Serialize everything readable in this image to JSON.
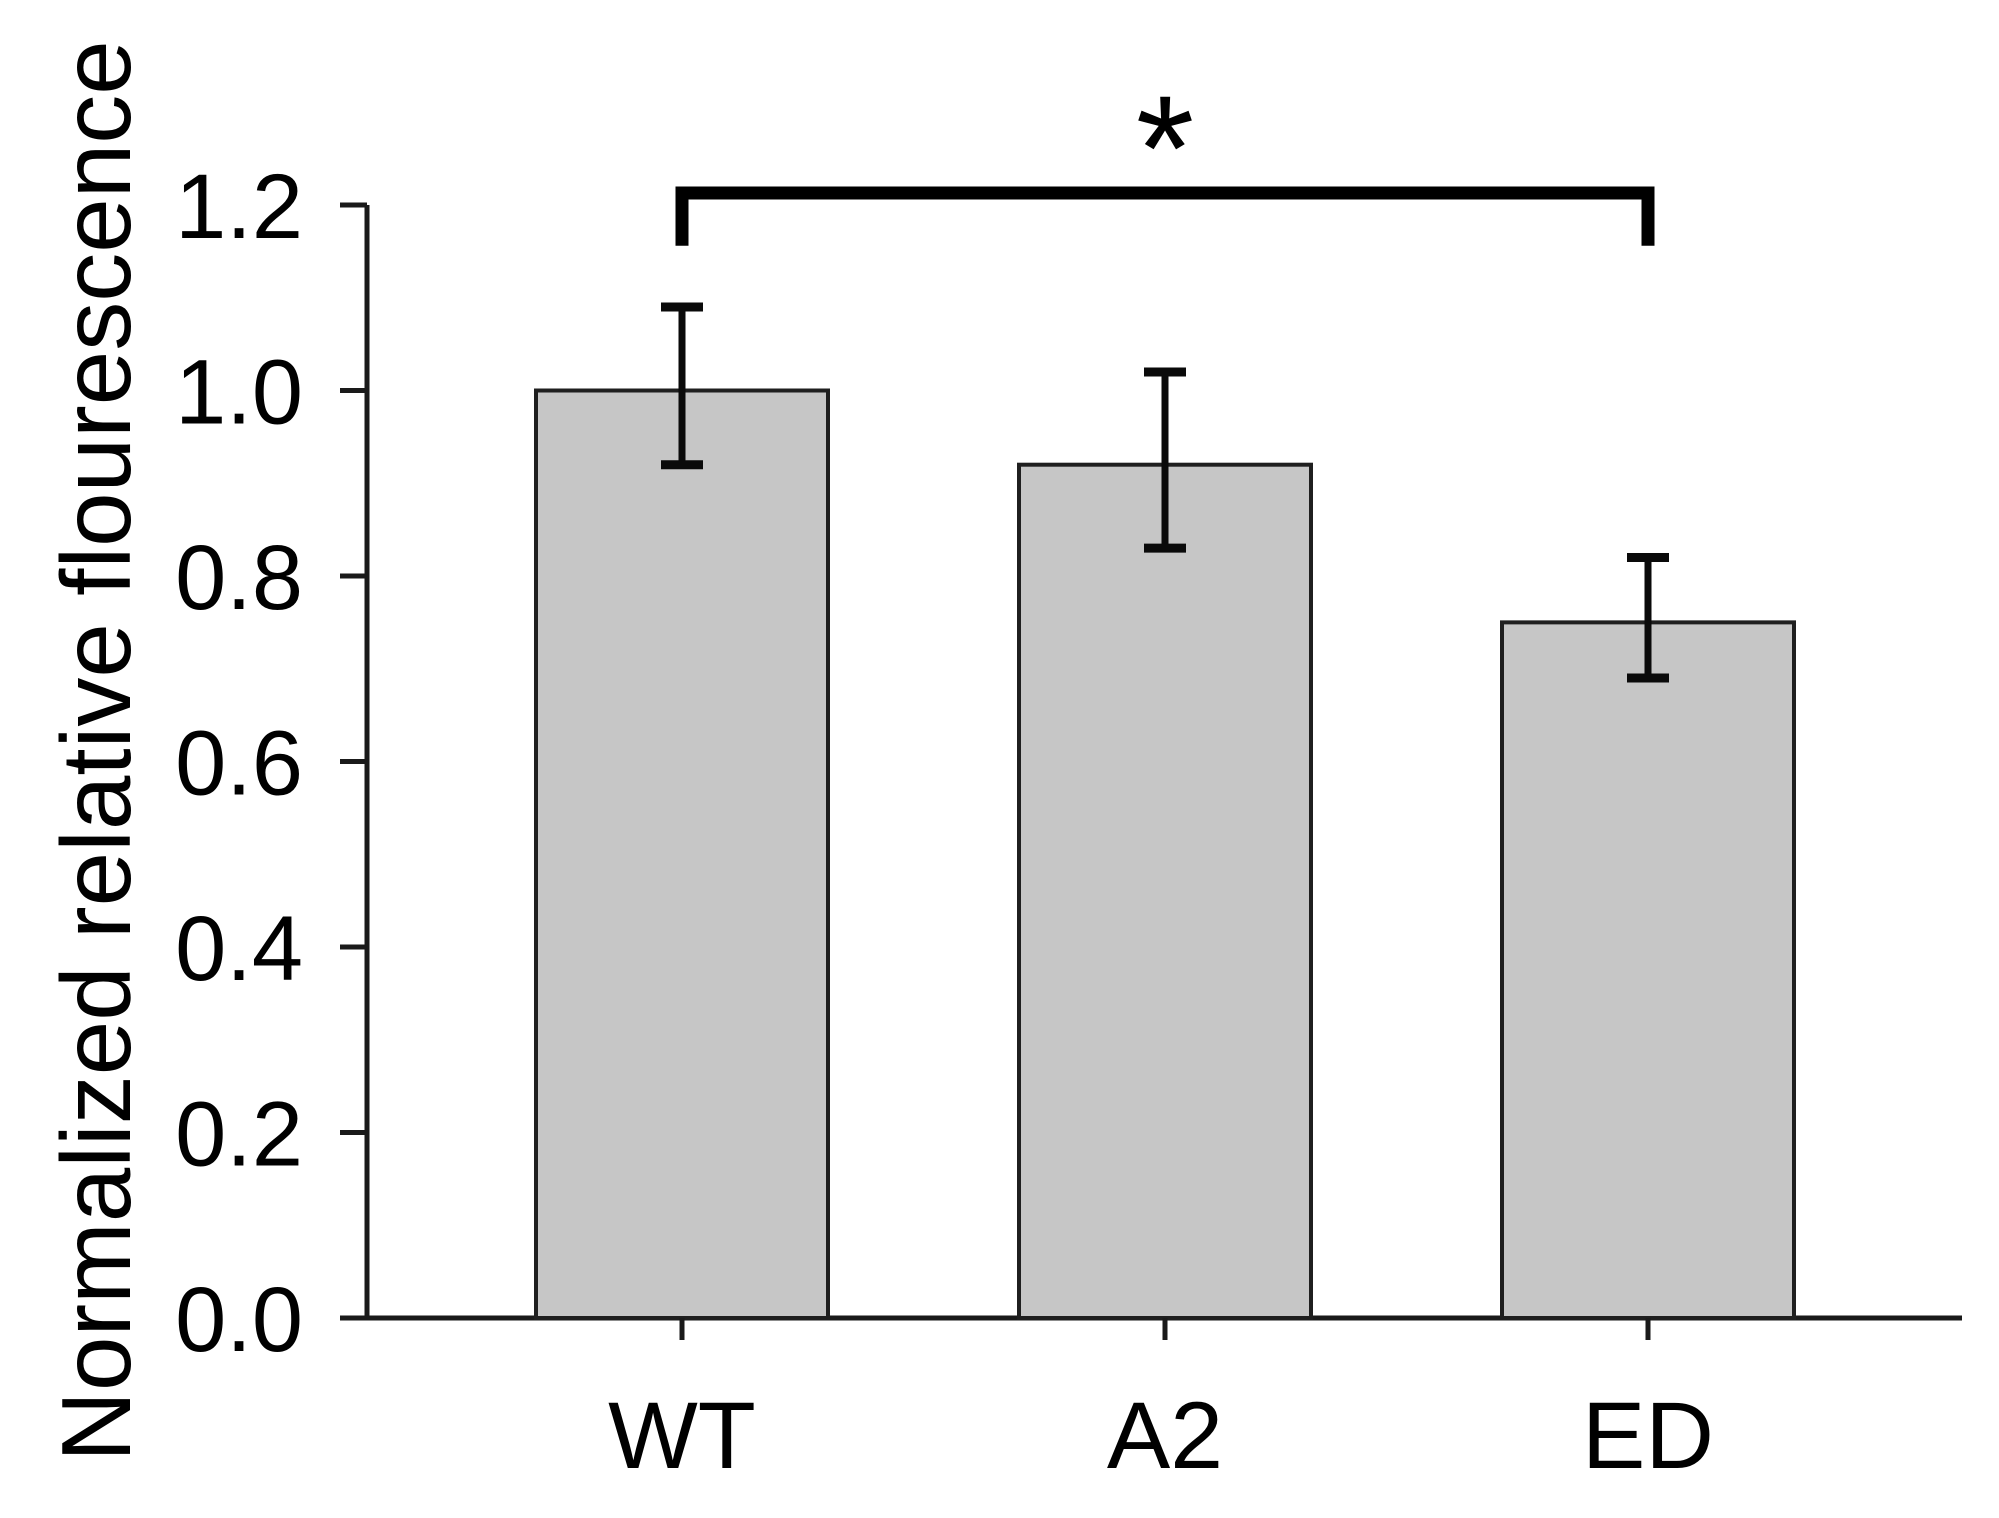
{
  "figure": {
    "background": "#ffffff"
  },
  "chart_data": {
    "type": "bar",
    "title": "",
    "categories": [
      "WT",
      "A2",
      "ED"
    ],
    "values": [
      1.0,
      0.92,
      0.75
    ],
    "error_upper": [
      0.09,
      0.1,
      0.07
    ],
    "error_lower": [
      0.08,
      0.09,
      0.06
    ],
    "ylabel": "Normalized relative flourescence",
    "xlabel": "",
    "ylim": [
      0.0,
      1.2
    ],
    "yticks": [
      0.0,
      0.2,
      0.4,
      0.6,
      0.8,
      1.0,
      1.2
    ],
    "ytick_labels": [
      "0.0",
      "0.2",
      "0.4",
      "0.6",
      "0.8",
      "1.0",
      "1.2"
    ],
    "grid": false,
    "legend": null,
    "bar_fill_color": "#c6c6c6",
    "bar_stroke_color": "#1f1f1f",
    "axis_color": "#1a1a1a",
    "error_bar_color": "#0a0a0a",
    "significance": {
      "from": "WT",
      "to": "ED",
      "label": "*",
      "bracket_y": 1.213,
      "tick_drop": 0.057
    }
  }
}
